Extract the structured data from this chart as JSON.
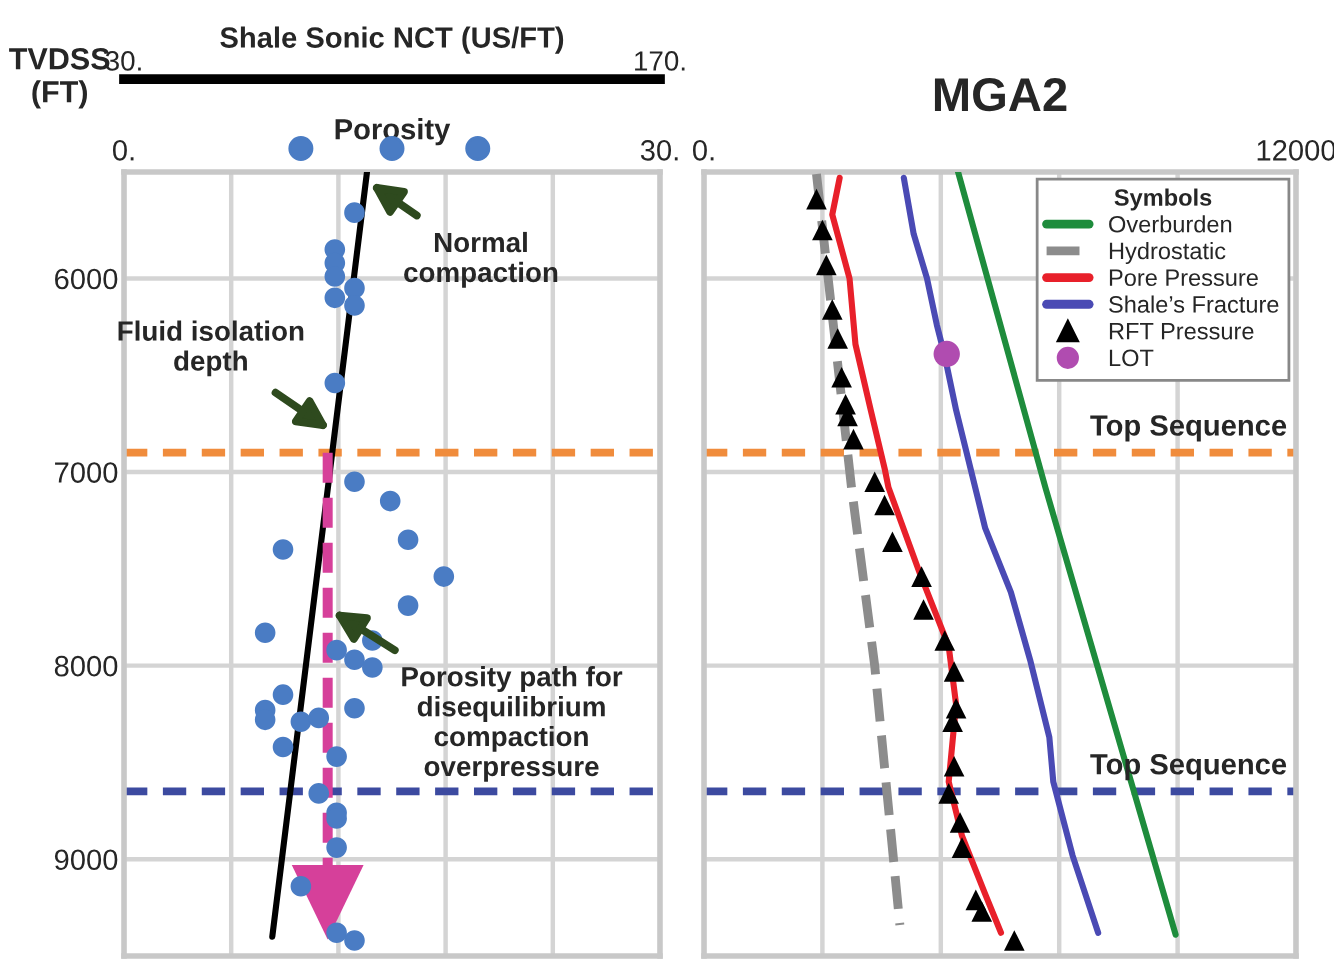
{
  "chart_data": [
    {
      "type": "scatter",
      "xlabel": "Porosity",
      "ylabel": "TVDSS\n(FT)",
      "x2label": "Shale Sonic NCT (US/FT)",
      "xlim": [
        0,
        30
      ],
      "xticks": [
        {
          "value": 0,
          "label": "0."
        },
        {
          "value": 6,
          "label": null
        },
        {
          "value": 12,
          "label": null
        },
        {
          "value": 18,
          "label": null
        },
        {
          "value": 24,
          "label": null
        },
        {
          "value": 30,
          "label": "30."
        }
      ],
      "x2lim": [
        30,
        170
      ],
      "x2ticks": [
        {
          "value": 30,
          "label": "30."
        },
        {
          "value": 170,
          "label": "170."
        }
      ],
      "ylim": [
        9500,
        5450
      ],
      "yticks": [
        6000,
        7000,
        8000,
        9000
      ],
      "grid": true,
      "series": [
        {
          "color": "#4a7cc4",
          "marker": "circle",
          "x": [
            12.9,
            11.8,
            11.8,
            11.8,
            11.8,
            12.9,
            12.9,
            11.8,
            12.9,
            14.9,
            8.9,
            15.9,
            17.9,
            15.9,
            7.9,
            11.9,
            13.9,
            12.9,
            13.9,
            8.9,
            7.9,
            7.9,
            9.9,
            10.9,
            12.9,
            8.9,
            11.9,
            10.9,
            11.9,
            11.9,
            11.9,
            9.9,
            11.9,
            12.9
          ],
          "values": [
            5660,
            5850,
            5920,
            5990,
            6100,
            6050,
            6140,
            6540,
            7050,
            7150,
            7400,
            7350,
            7540,
            7690,
            7830,
            7920,
            7870,
            7970,
            8010,
            8150,
            8230,
            8280,
            8290,
            8270,
            8220,
            8420,
            8470,
            8660,
            8760,
            8790,
            8940,
            9140,
            9380,
            9420
          ]
        },
        {
          "type": "line",
          "color": "#000000",
          "x": [
            13.6,
            8.3
          ],
          "values": [
            5450,
            9400
          ]
        }
      ],
      "ref_lines": [
        {
          "axis": "y",
          "value": 6900,
          "color": "#f08c3c",
          "line_style": "dashed"
        },
        {
          "axis": "y",
          "value": 8650,
          "color": "#3c4aa0",
          "line_style": "dashed"
        }
      ],
      "annotations": [
        "Normal\ncompaction",
        "Fluid isolation\ndepth",
        "Porosity path for\ndisequilibrium\ncompaction\noverpressure"
      ]
    },
    {
      "type": "line",
      "title": "MGA2",
      "legend_title": "Symbols",
      "legend": "top right",
      "tick_labels": "x",
      "xlim": [
        0,
        12000
      ],
      "xticks": [
        {
          "value": 0,
          "label": "0."
        },
        {
          "value": 2400,
          "label": null
        },
        {
          "value": 4800,
          "label": null
        },
        {
          "value": 7200,
          "label": null
        },
        {
          "value": 9600,
          "label": null
        },
        {
          "value": 12000,
          "label": "12000"
        }
      ],
      "ylim": [
        9500,
        5450
      ],
      "yticks": [
        6000,
        7000,
        8000,
        9000
      ],
      "grid": true,
      "series": [
        {
          "name": "Overburden",
          "color": "#1e8c3c",
          "x": [
            5150,
            6920,
            9560
          ],
          "values": [
            5450,
            7080,
            9390
          ]
        },
        {
          "name": "Hydrostatic",
          "color": "#8c8c8c",
          "line_style": "dashed",
          "x": [
            2280,
            2990,
            3460,
            3970
          ],
          "values": [
            5460,
            7080,
            8000,
            9340
          ]
        },
        {
          "name": "Pore Pressure",
          "color": "#e8202a",
          "x": [
            2750,
            2600,
            2950,
            3070,
            3380,
            3660,
            3740,
            4370,
            4960,
            5110,
            4960,
            5230,
            5700,
            6020
          ],
          "values": [
            5480,
            5670,
            6000,
            6340,
            6680,
            6980,
            7080,
            7520,
            7900,
            8200,
            8600,
            8880,
            9180,
            9380
          ]
        },
        {
          "name": "Shale’s Fracture",
          "color": "#4a4ab4",
          "x": [
            4050,
            4250,
            4520,
            4720,
            4880,
            5110,
            5430,
            5700,
            6220,
            6610,
            7000,
            7080,
            7470,
            7990
          ],
          "values": [
            5480,
            5770,
            6000,
            6240,
            6400,
            6680,
            7010,
            7290,
            7620,
            7970,
            8370,
            8600,
            8980,
            9380
          ]
        },
        {
          "name": "RFT Pressure",
          "type": "scatter",
          "color": "#000000",
          "marker": "triangle",
          "x": [
            2280,
            2400,
            2480,
            2600,
            2710,
            2790,
            2870,
            2910,
            3030,
            3460,
            3660,
            3820,
            4410,
            4450,
            4880,
            5070,
            5110,
            5040,
            5070,
            4960,
            5190,
            5230,
            5510,
            5630,
            6290
          ],
          "values": [
            5590,
            5750,
            5930,
            6160,
            6310,
            6510,
            6650,
            6710,
            6830,
            7050,
            7170,
            7360,
            7540,
            7710,
            7870,
            8030,
            8220,
            8290,
            8520,
            8660,
            8810,
            8940,
            9210,
            9270,
            9420
          ]
        },
        {
          "name": "LOT",
          "type": "scatter",
          "color": "#b04cb0",
          "marker": "circle",
          "x": [
            4920
          ],
          "values": [
            6390
          ]
        }
      ],
      "ref_lines": [
        {
          "axis": "y",
          "value": 6900,
          "label": "Top Sequence",
          "color": "#f08c3c",
          "line_style": "dashed"
        },
        {
          "axis": "y",
          "value": 8650,
          "label": "Top Sequence",
          "color": "#3c4aa0",
          "line_style": "dashed"
        }
      ]
    }
  ]
}
